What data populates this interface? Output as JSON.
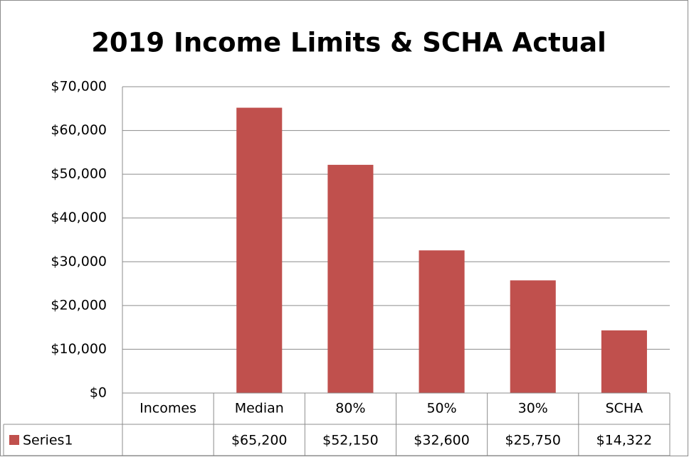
{
  "chart_data": {
    "type": "bar",
    "title": "2019 Income Limits & SCHA Actual",
    "categories": [
      "Incomes",
      "Median",
      "80%",
      "50%",
      "30%",
      "SCHA"
    ],
    "series": [
      {
        "name": "Series1",
        "color": "#c0504d",
        "values": [
          null,
          65200,
          52150,
          32600,
          25750,
          14322
        ],
        "value_labels": [
          null,
          "$65,200",
          "$52,150",
          "$32,600",
          "$25,750",
          "$14,322"
        ]
      }
    ],
    "ylim": [
      0,
      70000
    ],
    "yticks": [
      {
        "value": 0,
        "label": "$0"
      },
      {
        "value": 10000,
        "label": "$10,000"
      },
      {
        "value": 20000,
        "label": "$20,000"
      },
      {
        "value": 30000,
        "label": "$30,000"
      },
      {
        "value": 40000,
        "label": "$40,000"
      },
      {
        "value": 50000,
        "label": "$50,000"
      },
      {
        "value": 60000,
        "label": "$60,000"
      },
      {
        "value": 70000,
        "label": "$70,000"
      }
    ],
    "grid": true,
    "data_table": true
  }
}
